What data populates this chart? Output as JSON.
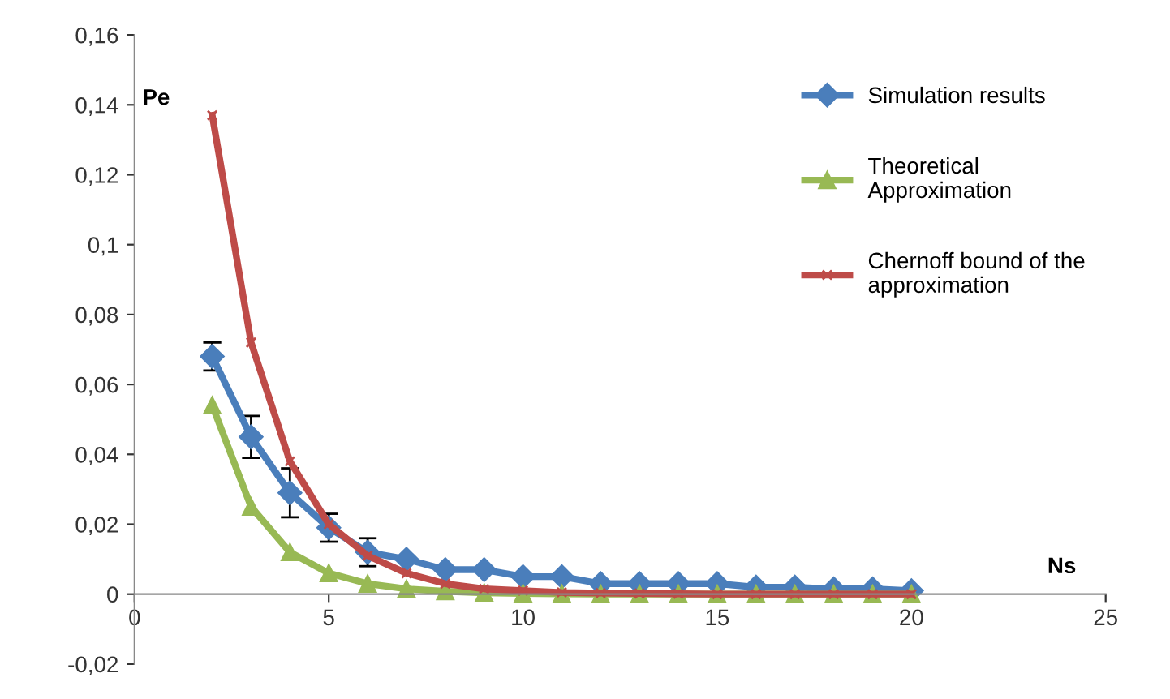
{
  "chart_data": {
    "type": "line",
    "xlabel": "Ns",
    "ylabel": "Pe",
    "xlim": [
      0,
      25
    ],
    "xticks": [
      0,
      5,
      10,
      15,
      20,
      25
    ],
    "ylim": [
      -0.02,
      0.16
    ],
    "yticks": [
      {
        "value": -0.02,
        "label": "-0,02"
      },
      {
        "value": 0,
        "label": "0"
      },
      {
        "value": 0.02,
        "label": "0,02"
      },
      {
        "value": 0.04,
        "label": "0,04"
      },
      {
        "value": 0.06,
        "label": "0,06"
      },
      {
        "value": 0.08,
        "label": "0,08"
      },
      {
        "value": 0.1,
        "label": "0,1"
      },
      {
        "value": 0.12,
        "label": "0,12"
      },
      {
        "value": 0.14,
        "label": "0,14"
      },
      {
        "value": 0.16,
        "label": "0,16"
      }
    ],
    "x": [
      2,
      3,
      4,
      5,
      6,
      7,
      8,
      9,
      10,
      11,
      12,
      13,
      14,
      15,
      16,
      17,
      18,
      19,
      20
    ],
    "grid": false,
    "legend": "top right",
    "series": [
      {
        "name": "Simulation results",
        "color": "#4a7ebb",
        "marker": "diamond",
        "values": [
          0.068,
          0.045,
          0.029,
          0.019,
          0.012,
          0.01,
          0.007,
          0.007,
          0.005,
          0.005,
          0.003,
          0.003,
          0.003,
          0.003,
          0.002,
          0.002,
          0.0015,
          0.0015,
          0.001
        ],
        "errors": [
          0.004,
          0.006,
          0.007,
          0.004,
          0.004,
          null,
          null,
          null,
          null,
          null,
          null,
          null,
          null,
          null,
          null,
          null,
          null,
          null,
          null
        ]
      },
      {
        "name": "Theoretical Approximation",
        "color": "#98b954",
        "marker": "triangle",
        "values": [
          0.054,
          0.025,
          0.012,
          0.006,
          0.003,
          0.0015,
          0.0008,
          0.0004,
          0.0002,
          0.0001,
          0,
          0,
          0,
          0,
          0,
          0,
          0,
          0,
          0
        ]
      },
      {
        "name": "Chernoff bound of the approximation",
        "color": "#be4b48",
        "marker": "cross",
        "values": [
          0.137,
          0.072,
          0.038,
          0.02,
          0.011,
          0.006,
          0.003,
          0.0015,
          0.001,
          0.0005,
          0.0003,
          0.0002,
          0.0001,
          0,
          0,
          0,
          0,
          0,
          0
        ]
      }
    ]
  }
}
